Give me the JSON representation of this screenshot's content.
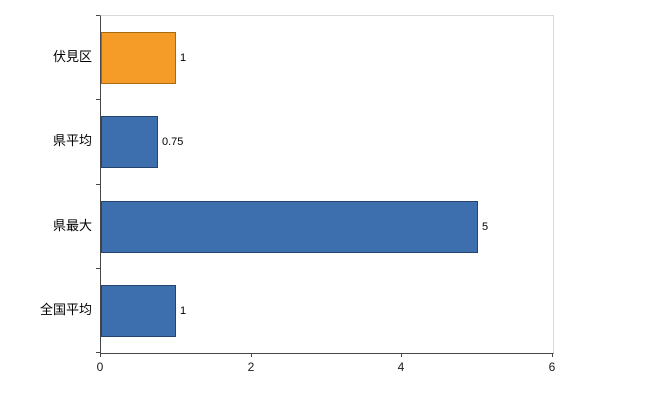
{
  "chart_data": {
    "type": "bar",
    "orientation": "horizontal",
    "title": "",
    "xlabel": "",
    "ylabel": "",
    "categories": [
      "伏見区",
      "県平均",
      "県最大",
      "全国平均"
    ],
    "values": [
      1,
      0.75,
      5,
      1
    ],
    "value_labels": [
      "1",
      "0.75",
      "5",
      "1"
    ],
    "bar_colors": [
      "#f59b28",
      "#3d6fae",
      "#3d6fae",
      "#3d6fae"
    ],
    "bar_border_colors": [
      "#a86a14",
      "#24466e",
      "#24466e",
      "#24466e"
    ],
    "xlim": [
      0,
      6
    ],
    "x_ticks": [
      0,
      2,
      4,
      6
    ],
    "x_tick_labels": [
      "0",
      "2",
      "4",
      "6"
    ],
    "grid": false,
    "legend": null
  },
  "colors": {
    "axis_line": "#474747",
    "plot_border": "#d9d9d9",
    "text": "#000000",
    "background": "#ffffff"
  }
}
